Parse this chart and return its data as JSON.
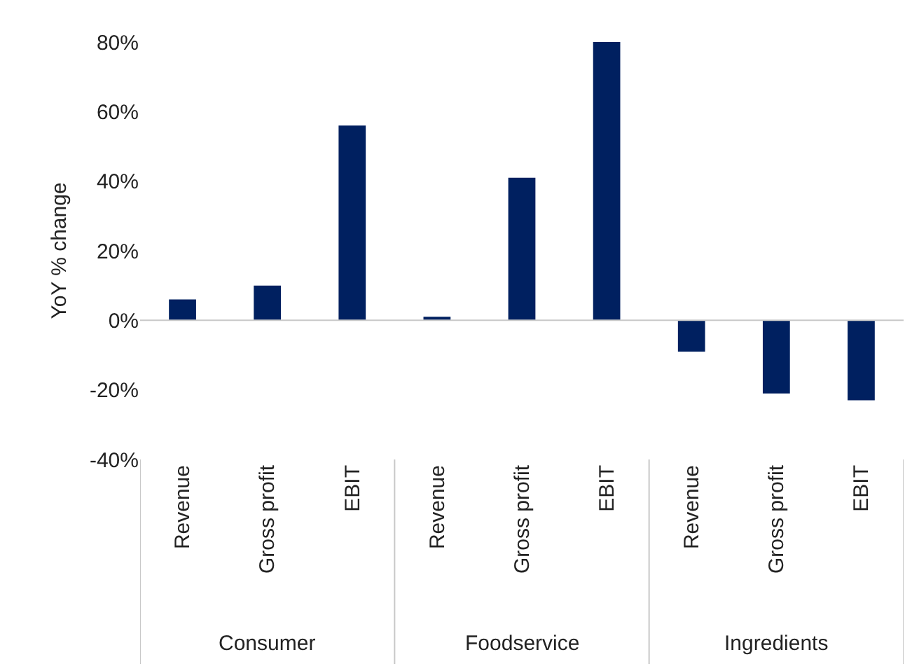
{
  "chart_data": {
    "type": "bar",
    "ylabel": "YoY % change",
    "categories": [
      "Revenue",
      "Gross profit",
      "EBIT",
      "Revenue",
      "Gross profit",
      "EBIT",
      "Revenue",
      "Gross profit",
      "EBIT"
    ],
    "values": [
      6,
      10,
      56,
      1,
      41,
      80,
      -9,
      -21,
      -23
    ],
    "ref_lines": [
      {
        "axis": "y",
        "value": 0,
        "color": "#c8c8c8"
      }
    ],
    "color": "#002060",
    "ylim": [
      -40,
      80
    ],
    "yticks": [
      {
        "value": -40,
        "label": "-40%"
      },
      {
        "value": -20,
        "label": "-20%"
      },
      {
        "value": 0,
        "label": "0%"
      },
      {
        "value": 20,
        "label": "20%"
      },
      {
        "value": 40,
        "label": "40%"
      },
      {
        "value": 60,
        "label": "60%"
      },
      {
        "value": 80,
        "label": "80%"
      }
    ],
    "grid": false,
    "legend": false,
    "annotations": [
      "Consumer",
      "Foodservice",
      "Ingredients"
    ]
  }
}
